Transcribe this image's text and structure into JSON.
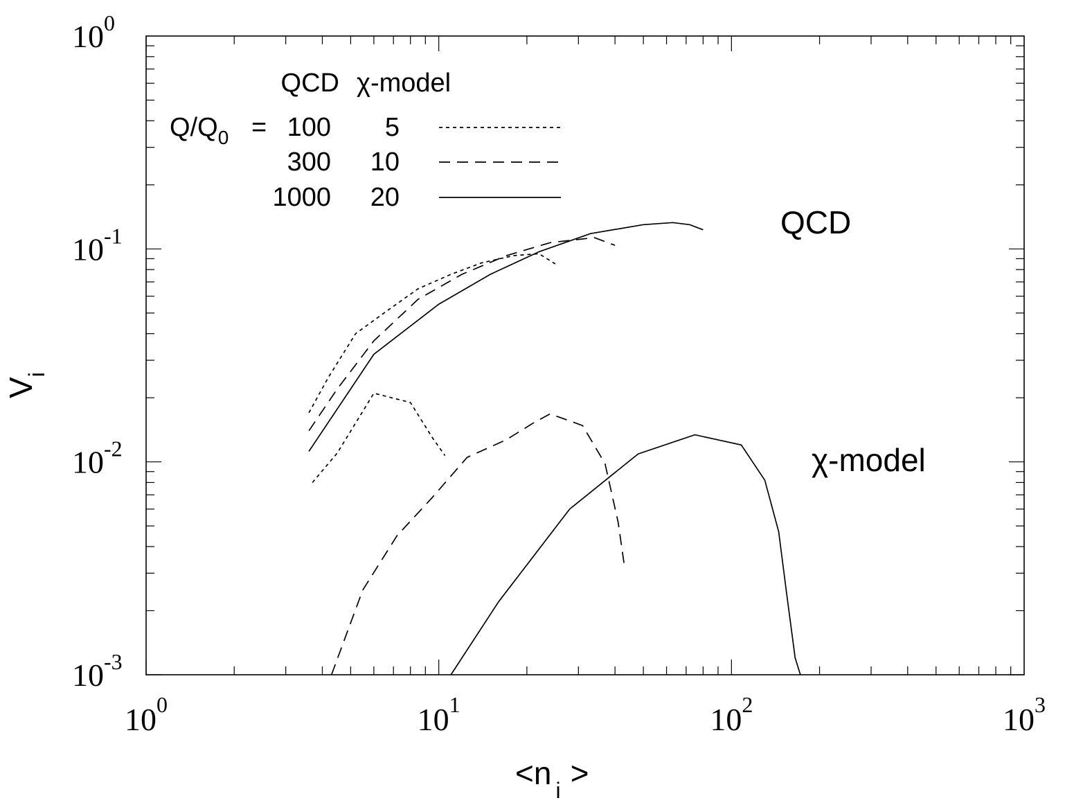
{
  "chart_data": {
    "type": "line",
    "xscale": "log",
    "yscale": "log",
    "xlim": [
      1,
      1000
    ],
    "ylim": [
      0.001,
      1
    ],
    "xlabel": {
      "main": "<n",
      "sub": "i",
      "close": ">"
    },
    "ylabel": {
      "main": "V",
      "sub": "i"
    },
    "x_ticks": [
      {
        "base": "10",
        "exp": "0"
      },
      {
        "base": "10",
        "exp": "1"
      },
      {
        "base": "10",
        "exp": "2"
      },
      {
        "base": "10",
        "exp": "3"
      }
    ],
    "y_ticks": [
      {
        "base": "10",
        "exp": "-3"
      },
      {
        "base": "10",
        "exp": "-2"
      },
      {
        "base": "10",
        "exp": "-1"
      },
      {
        "base": "10",
        "exp": "0"
      }
    ],
    "legend": {
      "header_qcd": "QCD",
      "header_chi": "χ-model",
      "param_label": "Q/Q",
      "param_sub": "0",
      "param_eq": "=",
      "rows": [
        {
          "qcd": "100",
          "chi": "5",
          "style": "dotted"
        },
        {
          "qcd": "300",
          "chi": "10",
          "style": "dashed"
        },
        {
          "qcd": "1000",
          "chi": "20",
          "style": "solid"
        }
      ]
    },
    "annotations": {
      "qcd": "QCD",
      "chi": "χ-model"
    },
    "series": [
      {
        "group": "QCD",
        "style": "dotted",
        "x": [
          3.6,
          4.2,
          5.2,
          6.5,
          8.5,
          11,
          14,
          18,
          22,
          25
        ],
        "y": [
          0.017,
          0.025,
          0.04,
          0.05,
          0.065,
          0.076,
          0.086,
          0.093,
          0.095,
          0.085
        ]
      },
      {
        "group": "QCD",
        "style": "dashed",
        "x": [
          3.6,
          4.5,
          6,
          8.5,
          12,
          17,
          24,
          34,
          40
        ],
        "y": [
          0.014,
          0.022,
          0.037,
          0.058,
          0.076,
          0.093,
          0.107,
          0.113,
          0.104
        ]
      },
      {
        "group": "QCD",
        "style": "solid",
        "x": [
          3.6,
          6,
          10,
          15,
          22,
          33,
          50,
          63,
          72,
          80
        ],
        "y": [
          0.0112,
          0.032,
          0.055,
          0.076,
          0.097,
          0.118,
          0.13,
          0.133,
          0.13,
          0.123
        ]
      },
      {
        "group": "χ-model",
        "style": "dotted",
        "x": [
          3.7,
          4.5,
          6,
          8,
          9.5,
          10.5
        ],
        "y": [
          0.008,
          0.011,
          0.021,
          0.019,
          0.013,
          0.0107
        ]
      },
      {
        "group": "χ-model",
        "style": "dashed",
        "x": [
          4.3,
          5.5,
          7.2,
          9.5,
          12.5,
          17,
          21,
          24,
          31,
          37,
          41,
          43
        ],
        "y": [
          0.001,
          0.0025,
          0.0045,
          0.0068,
          0.0105,
          0.0127,
          0.0152,
          0.0168,
          0.0148,
          0.0098,
          0.0052,
          0.0033
        ]
      },
      {
        "group": "χ-model",
        "style": "solid",
        "x": [
          11,
          16,
          28,
          48,
          75,
          108,
          130,
          145,
          155,
          165,
          172
        ],
        "y": [
          0.001,
          0.0022,
          0.006,
          0.0109,
          0.0134,
          0.012,
          0.0082,
          0.0047,
          0.0023,
          0.0012,
          0.001
        ]
      }
    ]
  }
}
